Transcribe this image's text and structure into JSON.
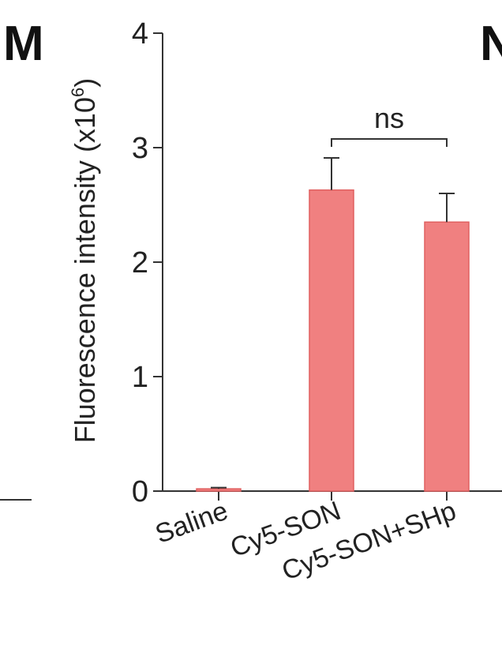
{
  "panel_labels": {
    "left": "M",
    "right": "N"
  },
  "chart_data": {
    "type": "bar",
    "categories": [
      "Saline",
      "Cy5-SON",
      "Cy5-SON+SHp"
    ],
    "values": [
      0.02,
      2.63,
      2.35
    ],
    "errors": [
      0.01,
      0.28,
      0.25
    ],
    "ylabel": "Fluorescence intensity (x10",
    "ylabel_sup": "6",
    "ylabel_close": ")",
    "ylim": [
      0,
      4
    ],
    "yticks": [
      0,
      1,
      2,
      3,
      4
    ],
    "grid": false,
    "annotation": {
      "text": "ns",
      "between": [
        "Cy5-SON",
        "Cy5-SON+SHp"
      ]
    },
    "colors": {
      "bar_fill": "#f08080",
      "bar_edge": "#e06060",
      "axis": "#333333"
    }
  }
}
